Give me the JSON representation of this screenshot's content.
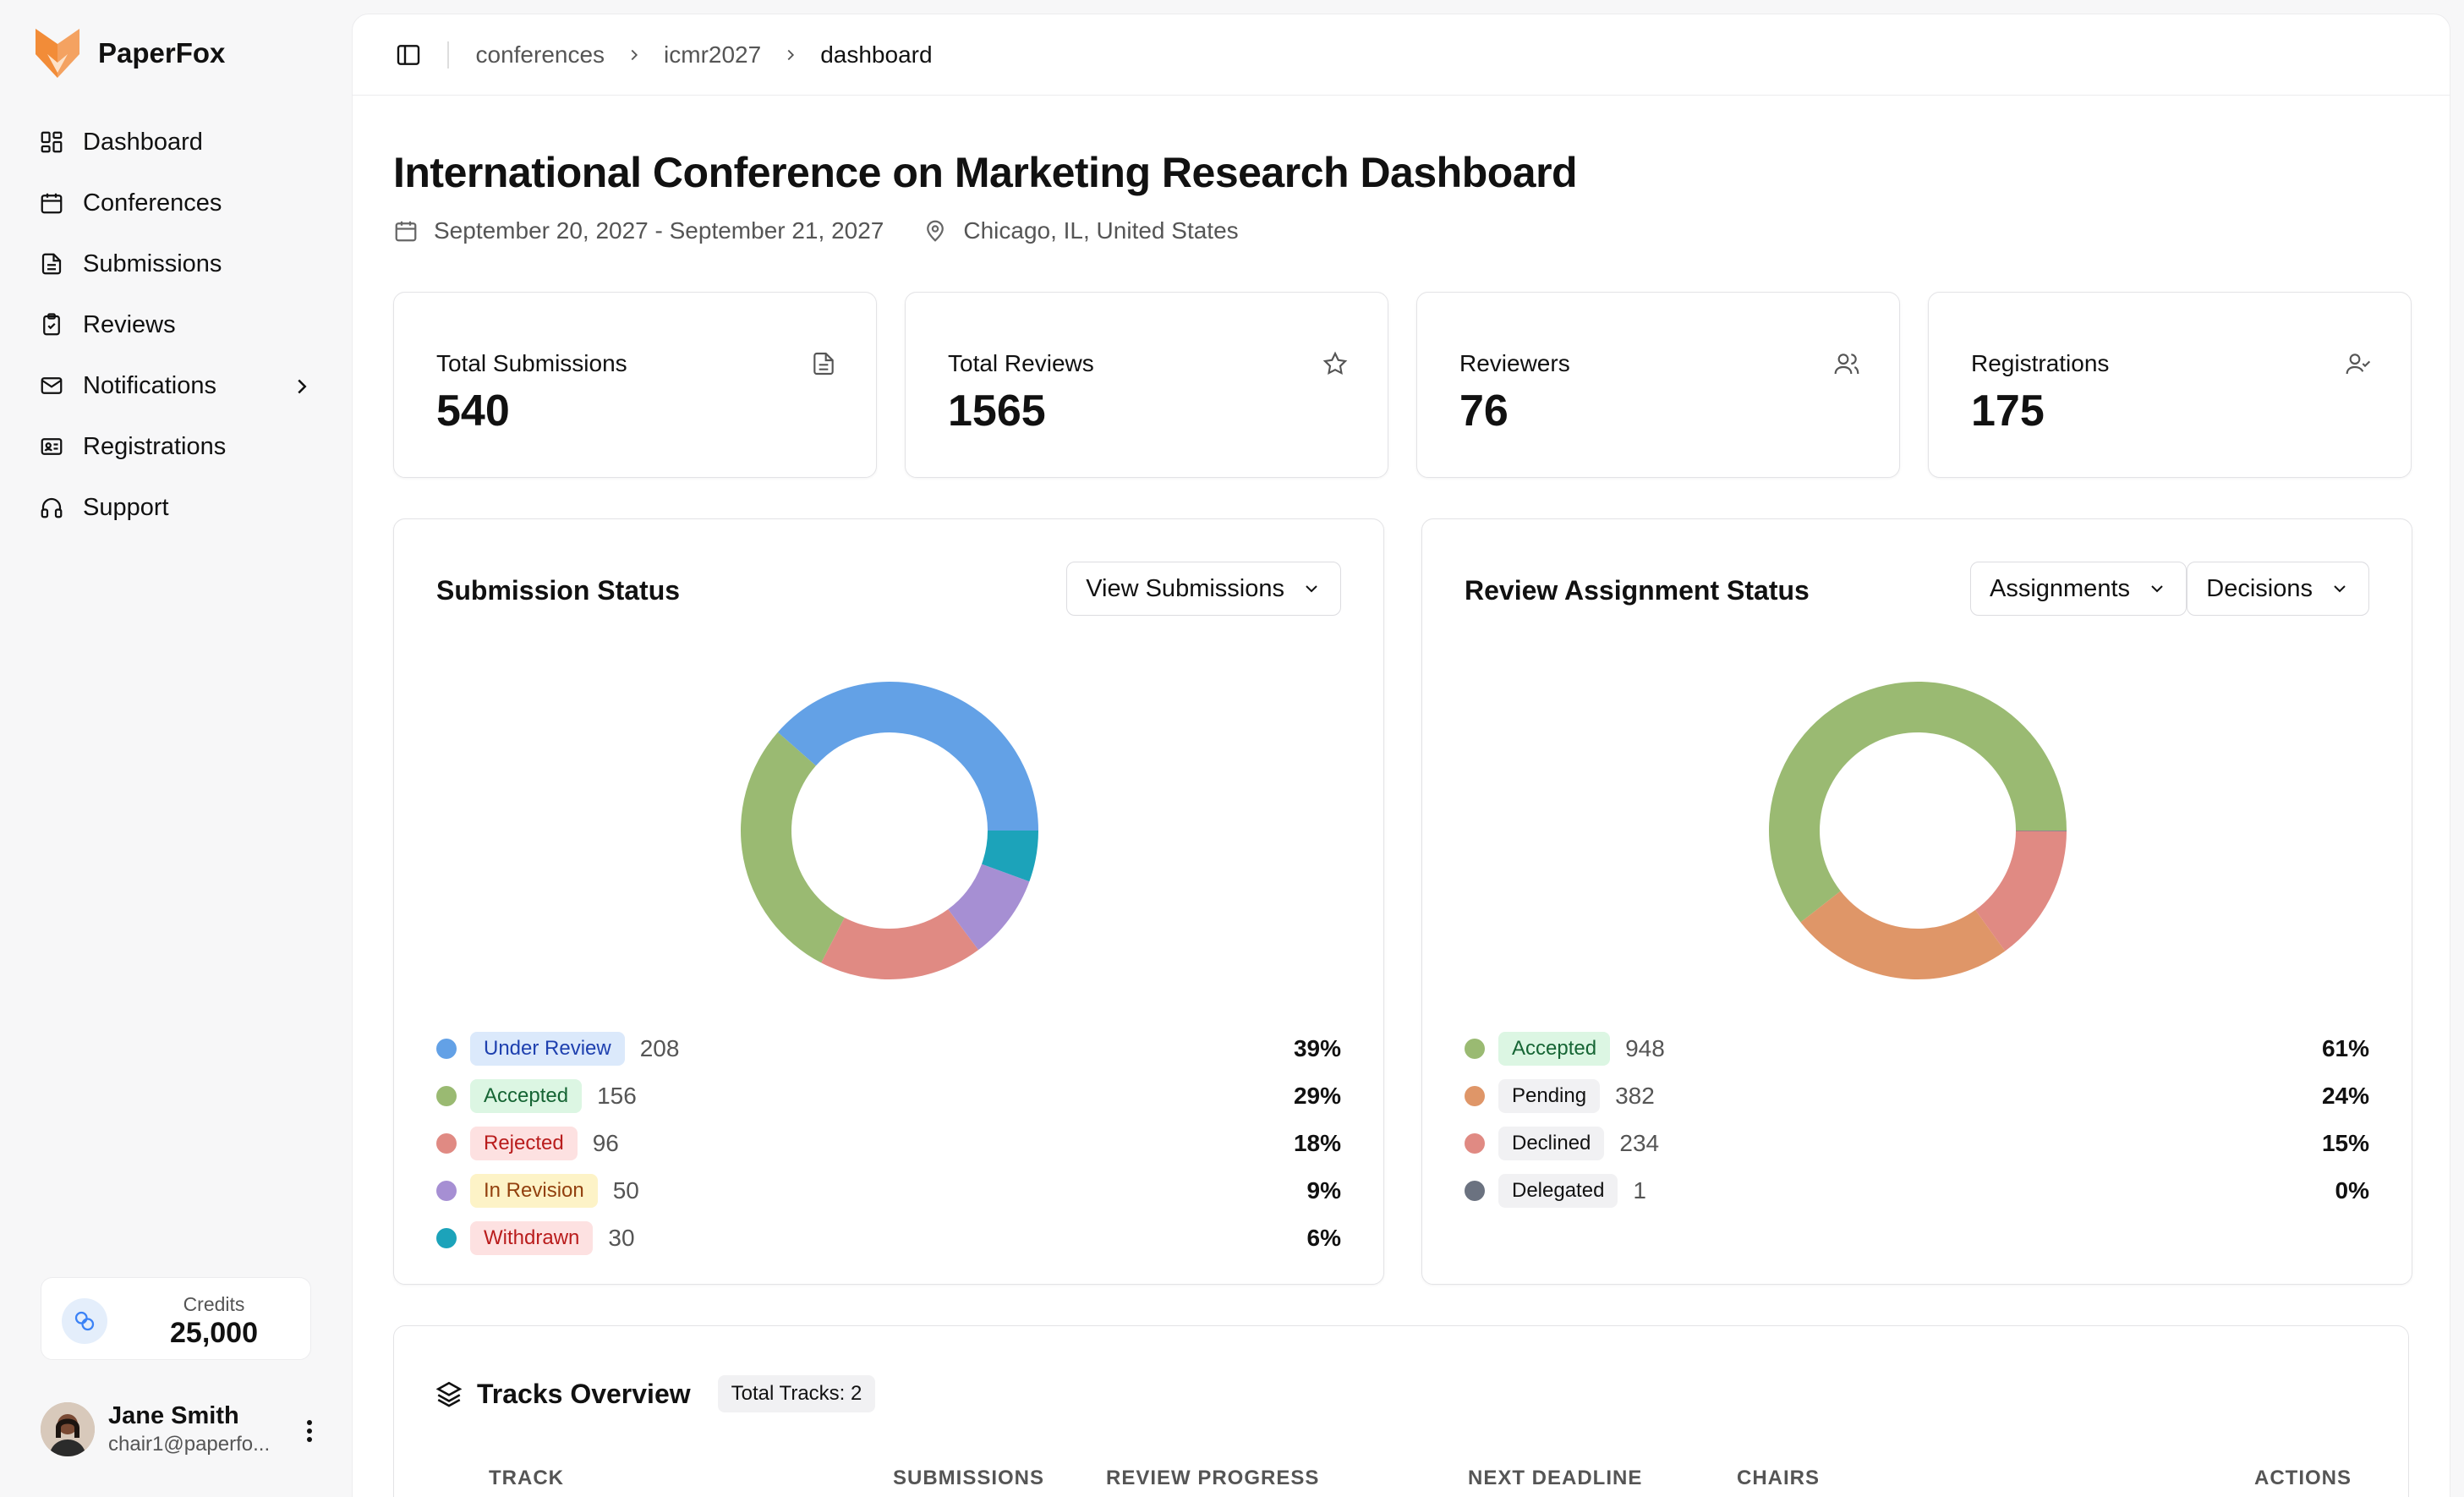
{
  "app": {
    "name": "PaperFox"
  },
  "sidebar": {
    "items": [
      {
        "label": "Dashboard",
        "icon": "dashboard-icon"
      },
      {
        "label": "Conferences",
        "icon": "calendar-icon"
      },
      {
        "label": "Submissions",
        "icon": "file-icon"
      },
      {
        "label": "Reviews",
        "icon": "clipboard-check-icon"
      },
      {
        "label": "Notifications",
        "icon": "mail-icon"
      },
      {
        "label": "Registrations",
        "icon": "id-card-icon"
      },
      {
        "label": "Support",
        "icon": "headphones-icon"
      }
    ],
    "credits": {
      "label": "Credits",
      "value": "25,000"
    },
    "user": {
      "name": "Jane Smith",
      "email": "chair1@paperfo..."
    }
  },
  "breadcrumb": {
    "items": [
      "conferences",
      "icmr2027",
      "dashboard"
    ]
  },
  "page": {
    "title": "International Conference on Marketing Research Dashboard",
    "dates": "September 20, 2027 - September 21, 2027",
    "location": "Chicago, IL, United States"
  },
  "stats": [
    {
      "label": "Total Submissions",
      "value": "540",
      "icon": "document-icon"
    },
    {
      "label": "Total Reviews",
      "value": "1565",
      "icon": "star-icon"
    },
    {
      "label": "Reviewers",
      "value": "76",
      "icon": "users-icon"
    },
    {
      "label": "Registrations",
      "value": "175",
      "icon": "user-check-icon"
    }
  ],
  "submission_status": {
    "title": "Submission Status",
    "select_label": "View Submissions"
  },
  "review_status": {
    "title": "Review Assignment Status",
    "select1_label": "Assignments",
    "select2_label": "Decisions"
  },
  "chart_data": [
    {
      "type": "pie",
      "title": "Submission Status",
      "categories": [
        "Under Review",
        "Accepted",
        "Rejected",
        "In Revision",
        "Withdrawn"
      ],
      "values": [
        208,
        156,
        96,
        50,
        30
      ],
      "percents": [
        "39%",
        "29%",
        "18%",
        "9%",
        "6%"
      ],
      "colors": [
        "#63a1e6",
        "#9aba72",
        "#e08a83",
        "#a68fd3",
        "#1ca3ba"
      ],
      "badge_bg": [
        "#dbe9fb",
        "#dcf6e3",
        "#fde1e1",
        "#fdf3c7",
        "#fde1e1"
      ],
      "badge_fg": [
        "#1e40af",
        "#166534",
        "#b91c1c",
        "#92400e",
        "#b91c1c"
      ]
    },
    {
      "type": "pie",
      "title": "Review Assignment Status",
      "categories": [
        "Accepted",
        "Pending",
        "Declined",
        "Delegated"
      ],
      "values": [
        948,
        382,
        234,
        1
      ],
      "percents": [
        "61%",
        "24%",
        "15%",
        "0%"
      ],
      "colors": [
        "#9aba72",
        "#df9668",
        "#e08a83",
        "#6b7280"
      ],
      "badge_bg": [
        "#dcf6e3",
        "#f1f1f3",
        "#f1f1f3",
        "#f1f1f3"
      ],
      "badge_fg": [
        "#166534",
        "#111111",
        "#111111",
        "#111111"
      ]
    }
  ],
  "tracks": {
    "title": "Tracks Overview",
    "badge": "Total Tracks: 2",
    "columns": [
      "TRACK",
      "SUBMISSIONS",
      "REVIEW PROGRESS",
      "NEXT DEADLINE",
      "CHAIRS",
      "ACTIONS"
    ]
  }
}
